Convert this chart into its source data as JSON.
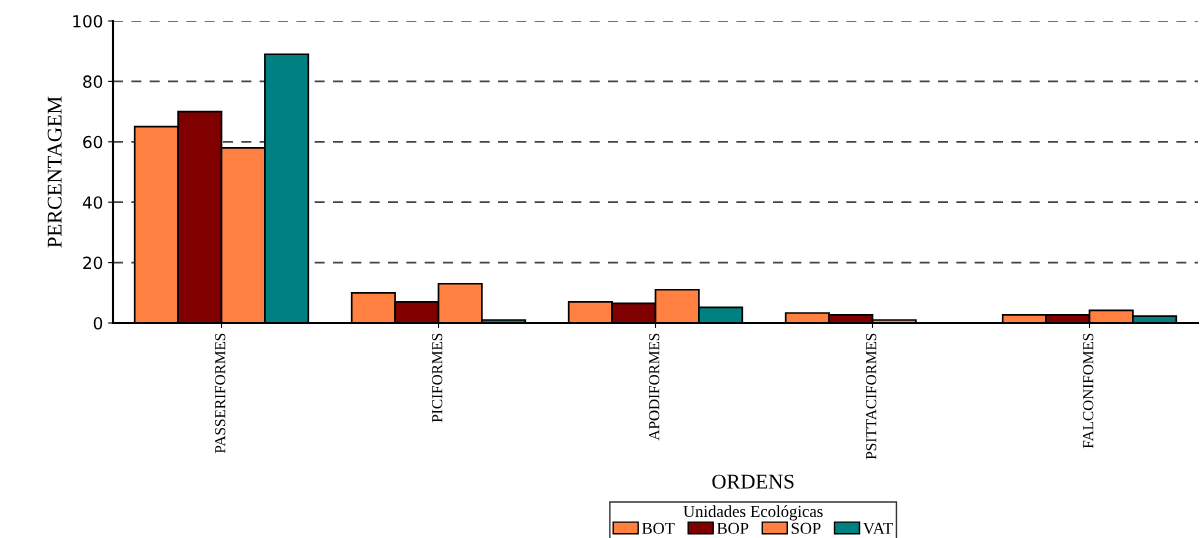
{
  "chart_data": {
    "type": "bar",
    "xlabel": "ORDENS",
    "ylabel": "PERCENTAGEM",
    "legend_title": "Unidades Ecológicas",
    "legend": "bottom",
    "grid": "y",
    "categories": [
      "PASSERIFORMES",
      "PICIFORMES",
      "APODIFORMES",
      "PSITTACIFORMES",
      "FALCONIFOMES"
    ],
    "ylim": [
      0,
      100
    ],
    "yticks": [
      0,
      20,
      40,
      60,
      80,
      100
    ],
    "series": [
      {
        "name": "BOT",
        "color": "#ff8040",
        "values": [
          65,
          10,
          7,
          3.3,
          2.7
        ]
      },
      {
        "name": "BOP",
        "color": "#800000",
        "values": [
          70,
          7,
          6.5,
          2.7,
          2.7
        ]
      },
      {
        "name": "SOP",
        "color": "#ff8040",
        "values": [
          58,
          13,
          11,
          1,
          4.2
        ]
      },
      {
        "name": "VAT",
        "color": "#008080",
        "values": [
          89,
          1,
          5.2,
          null,
          2.3
        ]
      }
    ]
  }
}
